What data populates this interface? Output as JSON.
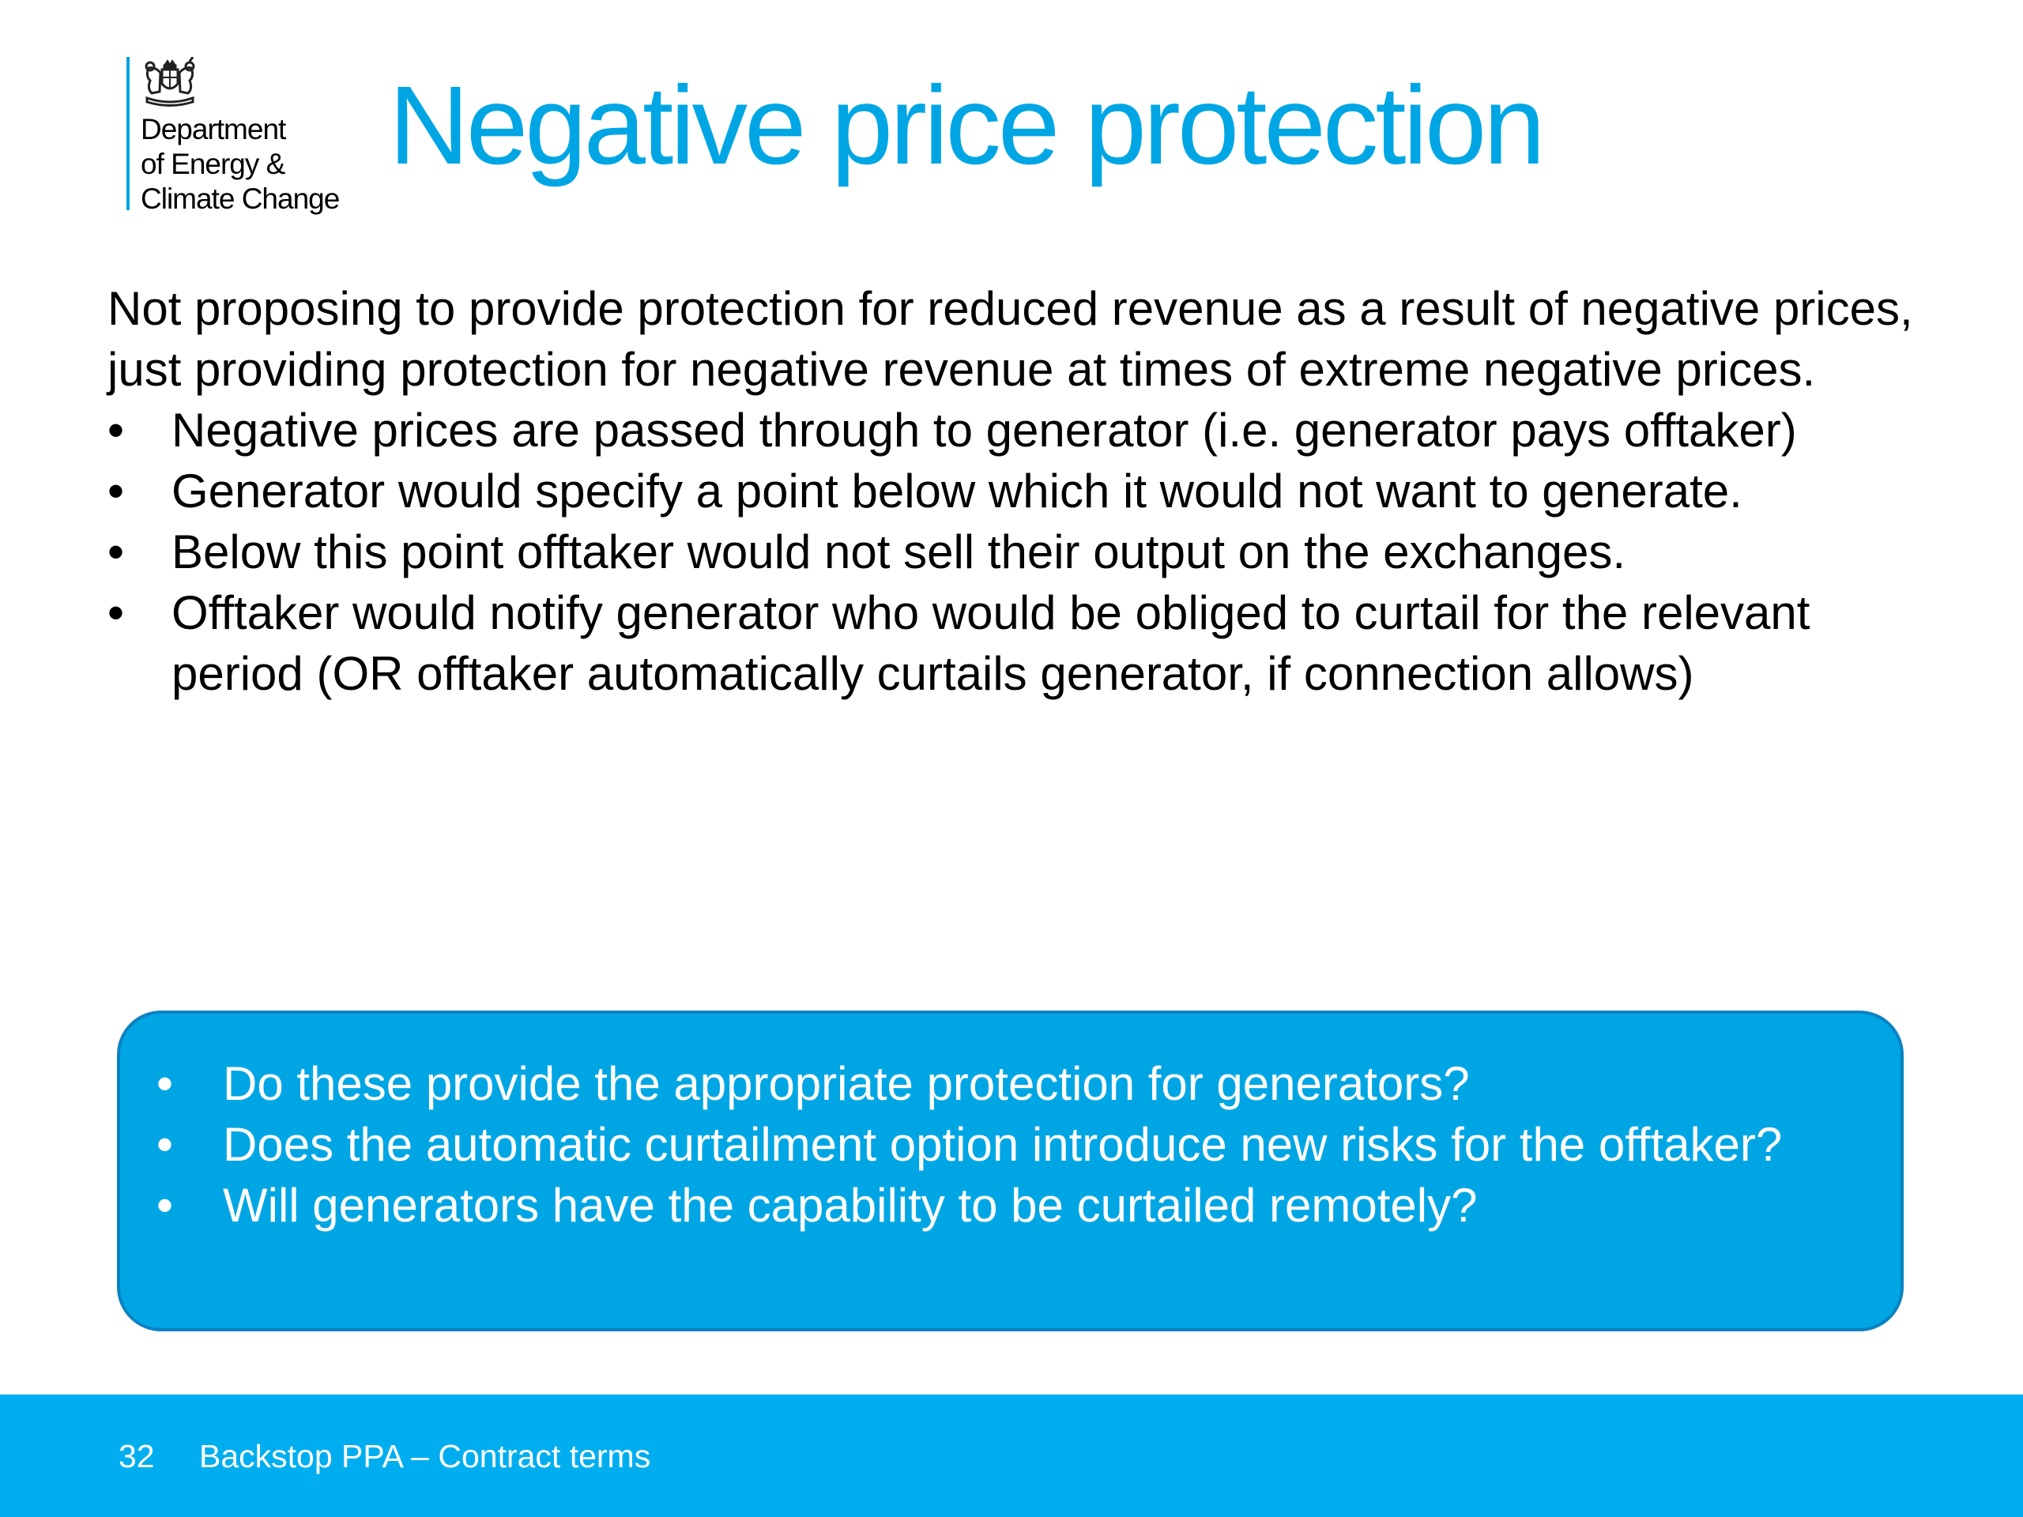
{
  "logo": {
    "name_lines": [
      "Department",
      "of Energy &",
      "Climate Change"
    ],
    "crest_icon": "royal-coat-of-arms-icon",
    "accent_color": "#00a1e0"
  },
  "slide": {
    "title": "Negative price protection",
    "intro": "Not proposing to provide protection for reduced revenue as a result of negative prices, just providing protection for negative revenue at times of extreme negative prices.",
    "bullet_glyph": "•",
    "points": [
      "Negative prices are passed through to generator (i.e. generator pays offtaker)",
      "Generator would specify a point below which it would not want to generate.",
      "Below this point offtaker would not sell their output on the exchanges.",
      "Offtaker would notify generator who would be obliged to curtail for the relevant period (OR offtaker automatically curtails generator, if connection allows)"
    ],
    "questions": [
      "Do these provide the appropriate protection for generators?",
      "Does the automatic curtailment option introduce new risks for the offtaker?",
      "Will generators have the capability to be curtailed remotely?"
    ]
  },
  "footer": {
    "page_number": "32",
    "title": "Backstop PPA – Contract terms"
  },
  "colors": {
    "title": "#00a6e4",
    "question_box": "#00a6e4",
    "footer_bar": "#00aeef"
  }
}
